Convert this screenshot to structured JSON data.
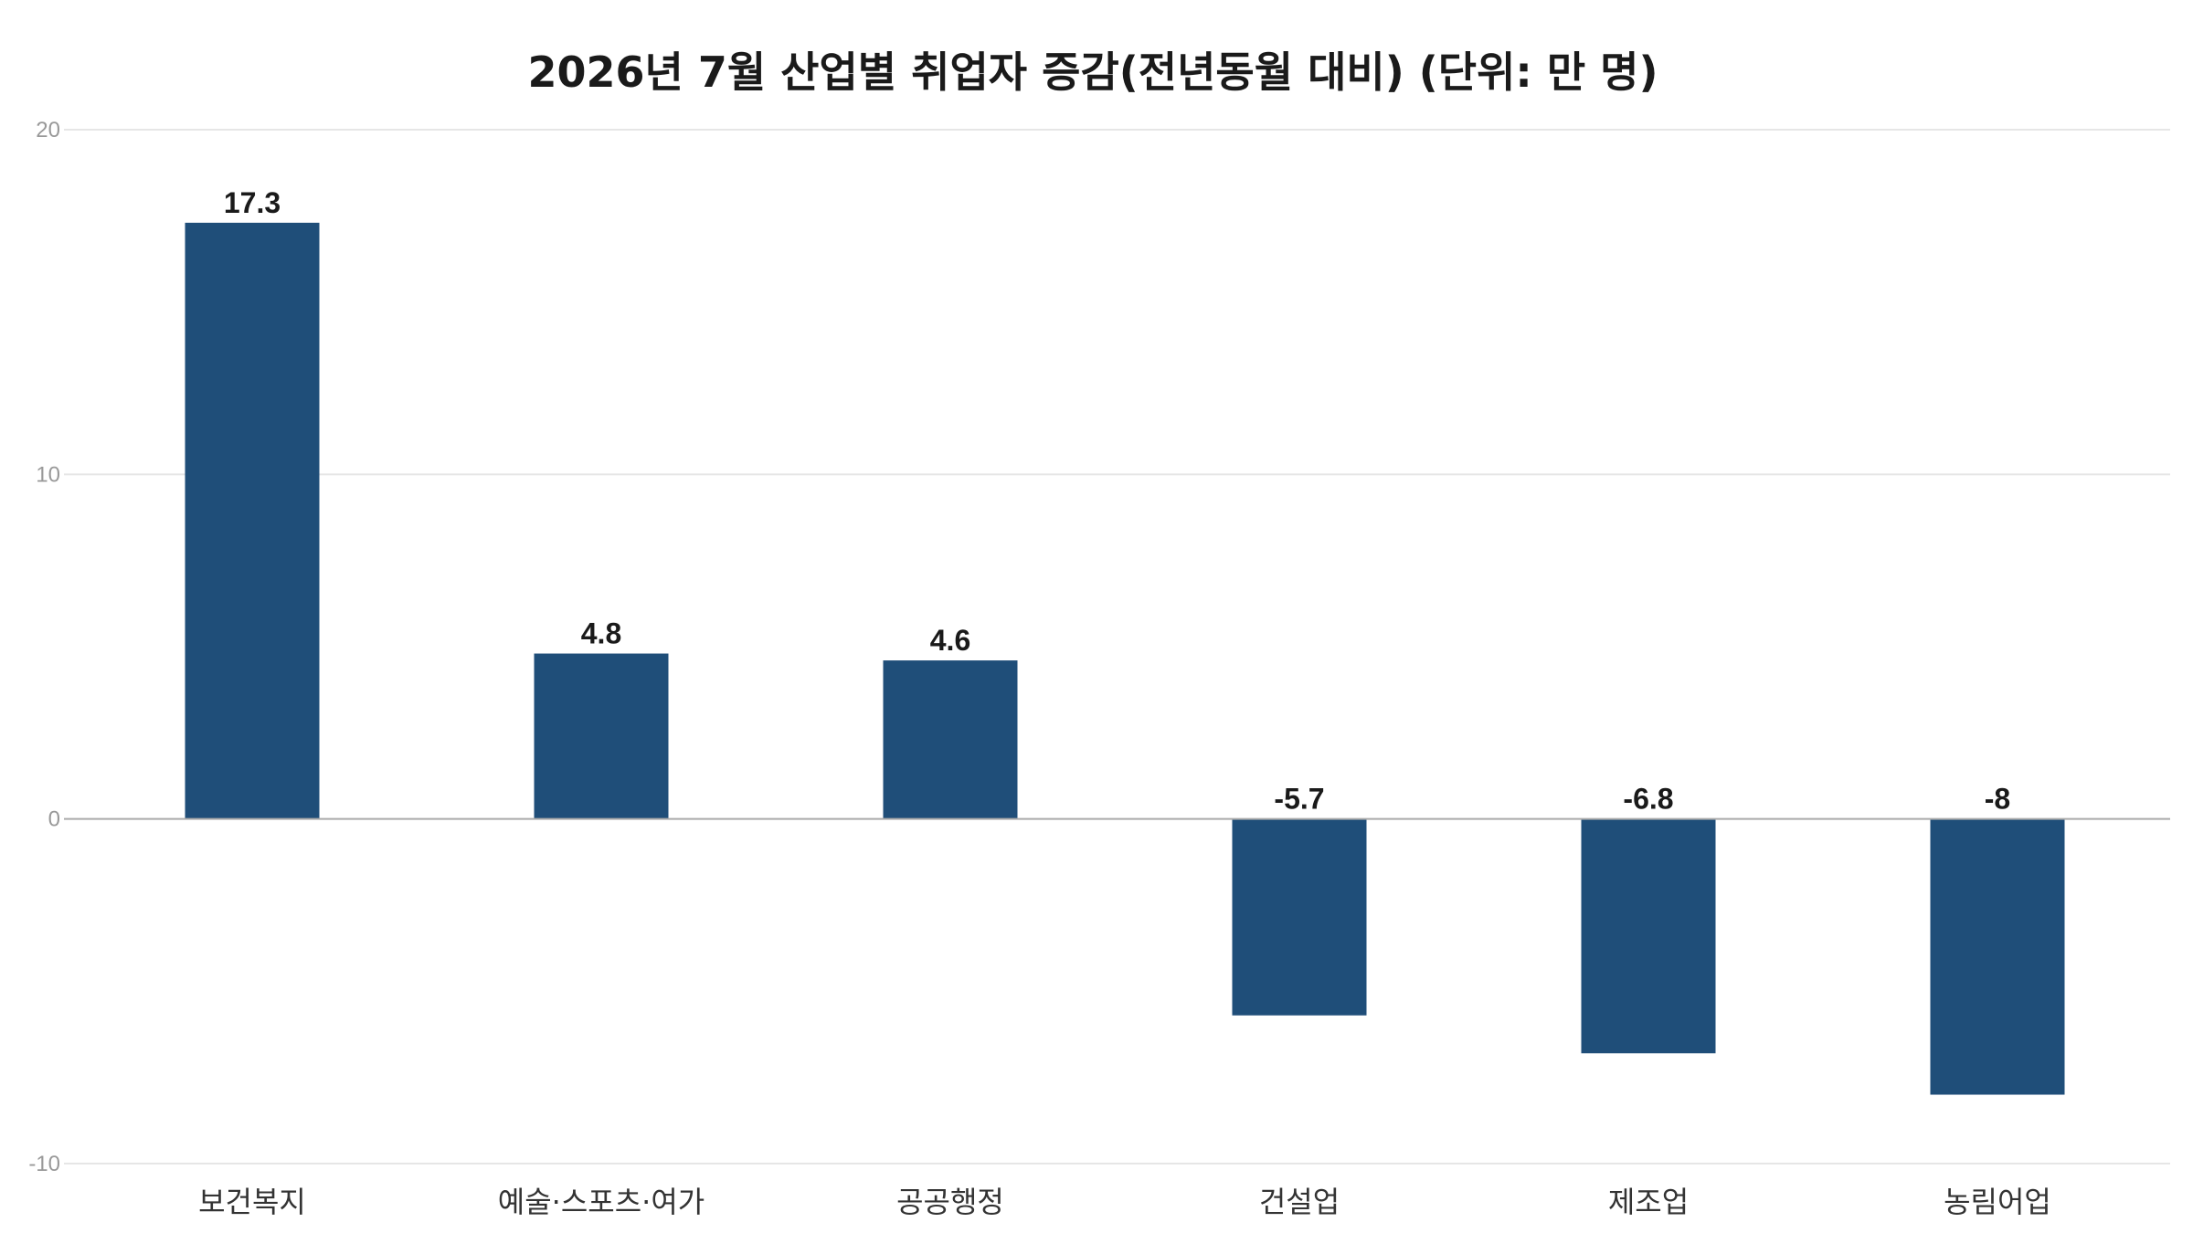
{
  "chart_data": {
    "type": "bar",
    "title": "2026년 7월 산업별 취업자 증감(전년동월 대비) (단위: 만 명)",
    "categories": [
      "보건복지",
      "예술·스포츠·여가",
      "공공행정",
      "건설업",
      "제조업",
      "농림어업"
    ],
    "values": [
      17.3,
      4.8,
      4.6,
      -5.7,
      -6.8,
      -8
    ],
    "value_labels": [
      "17.3",
      "4.8",
      "4.6",
      "-5.7",
      "-6.8",
      "-8"
    ],
    "xlabel": "",
    "ylabel": "",
    "ylim": [
      -10,
      20
    ],
    "yticks": [
      20,
      10,
      0,
      -10
    ],
    "ytick_labels": [
      "20",
      "10",
      "0",
      "-10"
    ],
    "grid": true,
    "legend": "none",
    "bar_color": "#1f4e79",
    "grid_color": "#e6e6e6",
    "zero_line_color": "#aaaaaa"
  }
}
